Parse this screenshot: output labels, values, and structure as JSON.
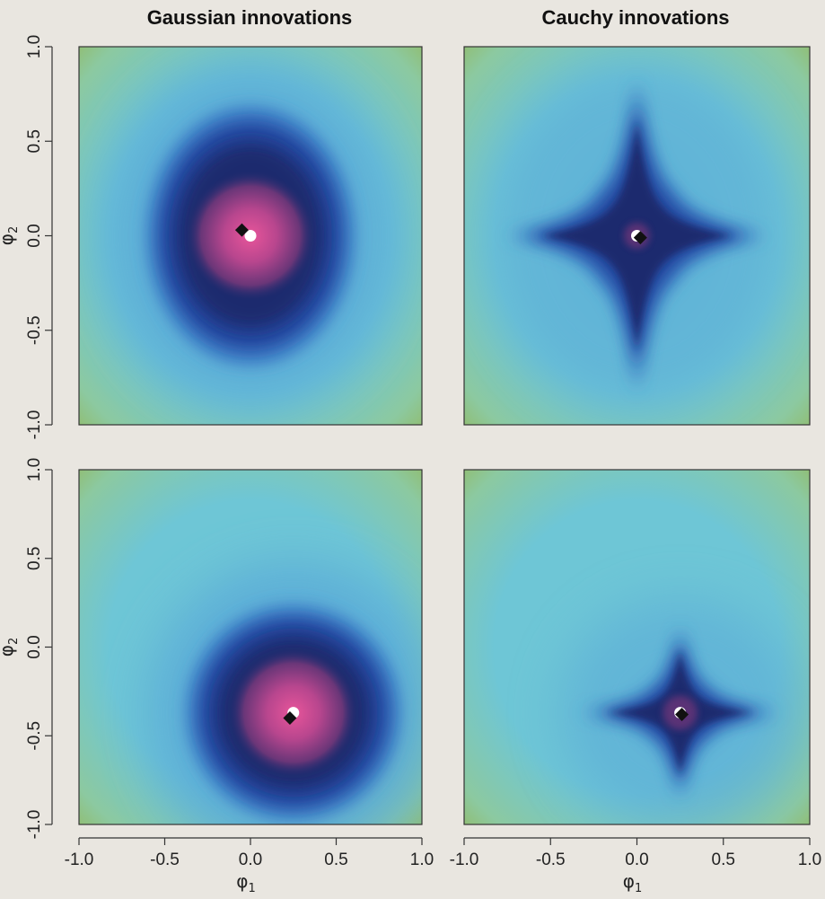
{
  "chart_data": {
    "type": "heatmap",
    "layout": "2x2 grid",
    "column_titles": [
      "Gaussian innovations",
      "Cauchy innovations"
    ],
    "xlabel": "φ",
    "xlabel_sub": "1",
    "ylabel": "φ",
    "ylabel_sub": "2",
    "xlim": [
      -1.0,
      1.0
    ],
    "ylim": [
      -1.0,
      1.0
    ],
    "x_ticks": [
      "-1.0",
      "-0.5",
      "0.0",
      "0.5",
      "1.0"
    ],
    "y_ticks": [
      "-1.0",
      "-0.5",
      "0.0",
      "0.5",
      "1.0"
    ],
    "colormap": [
      "#e8559a",
      "#b8468e",
      "#6a3678",
      "#1b2b6e",
      "#24449c",
      "#3a78c4",
      "#5aaad8",
      "#6ec6d6",
      "#8cc9a0",
      "#93b85e"
    ],
    "panels": [
      {
        "row": 1,
        "column": "Gaussian innovations",
        "shape": "round",
        "true_value": [
          0.0,
          0.0
        ],
        "estimate": [
          -0.05,
          0.03
        ],
        "blob_radius": [
          0.6,
          0.68
        ],
        "outer_radius": [
          0.85,
          0.9
        ],
        "core_radius": 0.12
      },
      {
        "row": 1,
        "column": "Cauchy innovations",
        "shape": "star",
        "true_value": [
          0.0,
          0.0
        ],
        "estimate": [
          0.02,
          -0.01
        ],
        "blob_radius": [
          0.65,
          0.72
        ],
        "outer_radius": [
          0.85,
          0.9
        ],
        "core_radius": 0.03
      },
      {
        "row": 2,
        "column": "Gaussian innovations",
        "shape": "round",
        "true_value": [
          0.25,
          -0.37
        ],
        "estimate": [
          0.23,
          -0.4
        ],
        "blob_radius": [
          0.62,
          0.6
        ],
        "outer_radius": [
          0.85,
          0.85
        ],
        "core_radius": 0.12
      },
      {
        "row": 2,
        "column": "Cauchy innovations",
        "shape": "star",
        "true_value": [
          0.25,
          -0.37
        ],
        "estimate": [
          0.26,
          -0.38
        ],
        "blob_radius": [
          0.5,
          0.42
        ],
        "outer_radius": [
          0.7,
          0.65
        ],
        "core_radius": 0.04
      }
    ],
    "markers": {
      "true_value": {
        "shape": "circle",
        "color": "#ffffff"
      },
      "estimate": {
        "shape": "diamond",
        "color": "#111111"
      }
    },
    "grid": false,
    "legend": "none"
  }
}
